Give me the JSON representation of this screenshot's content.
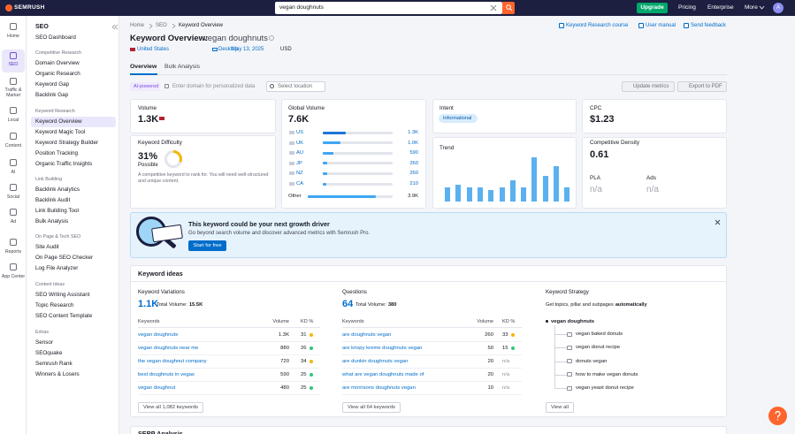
{
  "topbar": {
    "logo": "SEMRUSH",
    "search": "vegan doughnuts",
    "upgrade": "Upgrade",
    "links": [
      "Pricing",
      "Enterprise",
      "More"
    ],
    "avatar": "A"
  },
  "rail": [
    "Home",
    "SEO",
    "Traffic & Market",
    "Local",
    "Content",
    "AI",
    "Social",
    "Ad",
    "Reports",
    "App Center"
  ],
  "sidebar": {
    "title": "SEO",
    "dashboard": "SEO Dashboard",
    "groups": [
      {
        "heading": "Competitive Research",
        "items": [
          "Domain Overview",
          "Organic Research",
          "Keyword Gap",
          "Backlink Gap"
        ]
      },
      {
        "heading": "Keyword Research",
        "items": [
          "Keyword Overview",
          "Keyword Magic Tool",
          "Keyword Strategy Builder",
          "Position Tracking",
          "Organic Traffic Insights"
        ]
      },
      {
        "heading": "Link Building",
        "items": [
          "Backlink Analytics",
          "Backlink Audit",
          "Link Building Tool",
          "Bulk Analysis"
        ]
      },
      {
        "heading": "On Page & Tech SEO",
        "items": [
          "Site Audit",
          "On Page SEO Checker",
          "Log File Analyzer"
        ]
      },
      {
        "heading": "Content Ideas",
        "items": [
          "SEO Writing Assistant",
          "Topic Research",
          "SEO Content Template"
        ]
      },
      {
        "heading": "Extras",
        "items": [
          "Sensor",
          "SEOquake",
          "Semrush Rank",
          "Winners & Losers"
        ]
      }
    ]
  },
  "breadcrumb": [
    "Home",
    "SEO",
    "Keyword Overview"
  ],
  "header_links": [
    "Keyword Research course",
    "User manual",
    "Send feedback"
  ],
  "title": "Keyword Overview:",
  "keyword": "vegan doughnuts",
  "filters": [
    "United States",
    "Desktop",
    "May 13, 2025",
    "USD"
  ],
  "tabs": [
    "Overview",
    "Bulk Analysis"
  ],
  "toolbar": {
    "badge": "AI-powered",
    "placeholder": "Enter domain for personalized data",
    "location": "Select location",
    "update": "Update metrics",
    "export": "Export to PDF"
  },
  "volume": {
    "label": "Volume",
    "value": "1.3K"
  },
  "kd": {
    "label": "Keyword Difficulty",
    "value": 31,
    "value_label": "31%",
    "level": "Possible",
    "note": "A competitive keyword to rank for. You will need well-structured and unique content."
  },
  "global_volume": {
    "label": "Global Volume",
    "total": "7.6K",
    "countries": [
      "US",
      "UK",
      "AU",
      "JP",
      "NZ",
      "CA",
      "Other"
    ],
    "values": [
      1300,
      1000,
      590,
      260,
      260,
      210,
      3900
    ],
    "value_labels": [
      "1.3K",
      "1.0K",
      "590",
      "260",
      "260",
      "210",
      "3.9K"
    ]
  },
  "intent": {
    "label": "Intent",
    "value": "Informational"
  },
  "trend": {
    "label": "Trend",
    "values": [
      30,
      36,
      30,
      30,
      25,
      30,
      46,
      30,
      96,
      56,
      76,
      30
    ]
  },
  "cpc": {
    "label": "CPC",
    "value": "$1.23"
  },
  "competitive_density": {
    "label": "Competitive Density",
    "value": 0.61
  },
  "pla": {
    "label": "PLA",
    "value": "n/a"
  },
  "ads": {
    "label": "Ads",
    "value": "n/a"
  },
  "banner": {
    "title": "This keyword could be your next growth driver",
    "text": "Go beyond search volume and discover advanced metrics with Semrush Pro.",
    "button": "Start for free"
  },
  "keyword_ideas": {
    "title": "Keyword ideas",
    "variations": {
      "label": "Keyword Variations",
      "count": "1.1K",
      "total_label": "Total Volume:",
      "total": "15.5K",
      "columns": [
        "Keywords",
        "Volume",
        "KD %"
      ],
      "rows": [
        [
          "vegan doughnuts",
          "1.3K",
          31
        ],
        [
          "vegan doughnuts near me",
          880,
          26
        ],
        [
          "the vegan doughnut company",
          720,
          34
        ],
        [
          "best doughnuts in vegas",
          590,
          25
        ],
        [
          "vegan doughnut",
          480,
          25
        ]
      ],
      "button": "View all 1,082 keywords"
    },
    "questions": {
      "label": "Questions",
      "count": 64,
      "total_label": "Total Volume:",
      "total": 380,
      "columns": [
        "Keywords",
        "Volume",
        "KD %"
      ],
      "rows": [
        [
          "are doughnuts vegan",
          260,
          33
        ],
        [
          "are krispy kreme doughnuts vegan",
          50,
          15
        ],
        [
          "are dunkin doughnuts vegan",
          20,
          "n/a"
        ],
        [
          "what are vegan doughnuts made of",
          20,
          "n/a"
        ],
        [
          "are morrisons doughnuts vegan",
          10,
          "n/a"
        ]
      ],
      "button": "View all 64 keywords"
    },
    "strategy": {
      "label": "Keyword Strategy",
      "text": "Get topics, pillar and subpages",
      "bold": "automatically",
      "root": "vegan doughnuts",
      "items": [
        "vegan baked donuts",
        "vegan donut recipe",
        "donuts vegan",
        "how to make vegan donuts",
        "vegan yeast donut recipe"
      ],
      "button": "View all"
    }
  },
  "serp": {
    "title": "SERP Analysis"
  }
}
